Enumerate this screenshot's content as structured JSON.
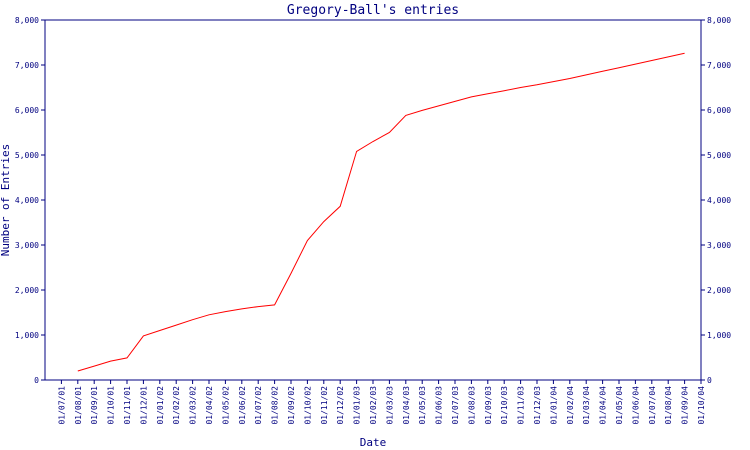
{
  "chart_data": {
    "type": "line",
    "title": "Gregory-Ball's entries",
    "xlabel": "Date",
    "ylabel": "Number of Entries",
    "ylim": [
      0,
      8000
    ],
    "y_ticks": [
      0,
      1000,
      2000,
      3000,
      4000,
      5000,
      6000,
      7000,
      8000
    ],
    "y_tick_labels": [
      "0",
      "1,000",
      "2,000",
      "3,000",
      "4,000",
      "5,000",
      "6,000",
      "7,000",
      "8,000"
    ],
    "x_tick_labels": [
      "01/07/01",
      "01/08/01",
      "01/09/01",
      "01/10/01",
      "01/11/01",
      "01/12/01",
      "01/01/02",
      "01/02/02",
      "01/03/02",
      "01/04/02",
      "01/05/02",
      "01/06/02",
      "01/07/02",
      "01/08/02",
      "01/09/02",
      "01/10/02",
      "01/11/02",
      "01/12/02",
      "01/01/03",
      "01/02/03",
      "01/03/03",
      "01/04/03",
      "01/05/03",
      "01/06/03",
      "01/07/03",
      "01/08/03",
      "01/09/03",
      "01/10/03",
      "01/11/03",
      "01/12/03",
      "01/01/04",
      "01/02/04",
      "01/03/04",
      "01/04/04",
      "01/05/04",
      "01/06/04",
      "01/07/04",
      "01/08/04",
      "01/09/04",
      "01/10/04"
    ],
    "grid": false,
    "right_axis": true,
    "colors": {
      "axis": "#000080",
      "series": "#ff0000",
      "background": "#ffffff"
    },
    "series": [
      {
        "points": [
          {
            "x": "01/08/01",
            "y": 200
          },
          {
            "x": "01/09/01",
            "y": 310
          },
          {
            "x": "01/10/01",
            "y": 420
          },
          {
            "x": "01/11/01",
            "y": 490
          },
          {
            "x": "01/12/01",
            "y": 980
          },
          {
            "x": "01/01/02",
            "y": 1100
          },
          {
            "x": "01/02/02",
            "y": 1220
          },
          {
            "x": "01/03/02",
            "y": 1340
          },
          {
            "x": "01/04/02",
            "y": 1450
          },
          {
            "x": "01/05/02",
            "y": 1520
          },
          {
            "x": "01/06/02",
            "y": 1580
          },
          {
            "x": "01/07/02",
            "y": 1630
          },
          {
            "x": "01/08/02",
            "y": 1670
          },
          {
            "x": "01/09/02",
            "y": 2370
          },
          {
            "x": "01/10/02",
            "y": 3100
          },
          {
            "x": "01/11/02",
            "y": 3520
          },
          {
            "x": "01/12/02",
            "y": 3860
          },
          {
            "x": "01/01/03",
            "y": 5080
          },
          {
            "x": "01/02/03",
            "y": 5300
          },
          {
            "x": "01/03/03",
            "y": 5500
          },
          {
            "x": "01/04/03",
            "y": 5880
          },
          {
            "x": "01/05/03",
            "y": 5990
          },
          {
            "x": "01/06/03",
            "y": 6090
          },
          {
            "x": "01/07/03",
            "y": 6190
          },
          {
            "x": "01/08/03",
            "y": 6290
          },
          {
            "x": "01/09/03",
            "y": 6360
          },
          {
            "x": "01/10/03",
            "y": 6430
          },
          {
            "x": "01/11/03",
            "y": 6500
          },
          {
            "x": "01/12/03",
            "y": 6560
          },
          {
            "x": "01/01/04",
            "y": 6630
          },
          {
            "x": "01/02/04",
            "y": 6700
          },
          {
            "x": "01/03/04",
            "y": 6780
          },
          {
            "x": "01/04/04",
            "y": 6860
          },
          {
            "x": "01/05/04",
            "y": 6940
          },
          {
            "x": "01/06/04",
            "y": 7020
          },
          {
            "x": "01/07/04",
            "y": 7100
          },
          {
            "x": "01/08/04",
            "y": 7180
          },
          {
            "x": "01/09/04",
            "y": 7260
          }
        ]
      }
    ]
  }
}
